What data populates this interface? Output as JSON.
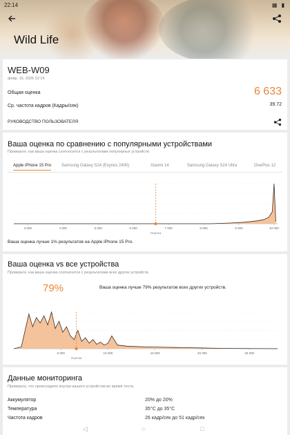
{
  "status_bar": {
    "time": "22:14",
    "icons": "▦ ▮"
  },
  "header": {
    "title": "Wild Life",
    "back_icon": "arrow-left-icon",
    "share_icon": "share-icon"
  },
  "result": {
    "device": "WEB-W09",
    "date": "февр. 15, 2025 22:14",
    "overall_label": "Общая оценка",
    "overall_value": "6 633",
    "fps_label": "Ср. частота кадров (Кадры/сек)",
    "fps_value": "39.72",
    "guide_label": "РУКОВОДСТВО ПОЛЬЗОВАТЕЛЯ"
  },
  "compare_popular": {
    "title": "Ваша оценка по сравнению с популярными устройствами",
    "subtitle": "Проверьте, как ваша оценка соотносится с результатами популярных устройств.",
    "tabs": [
      "Apple iPhone 15 Pro",
      "Samsung Galaxy S24 (Exynos 2400)",
      "Xiaomi 14",
      "Samsung Galaxy S24 Ultra",
      "OnePlus 12"
    ],
    "active_tab": 0,
    "note": "Ваша оценка лучше 1% результатов на Apple iPhone 15 Pro."
  },
  "compare_all": {
    "title": "Ваша оценка vs все устройства",
    "subtitle": "Проверьте, как ваша оценка соотносится с результатами всех других устройств.",
    "percent": "79%",
    "text": "Ваша оценка лучше 79% результатов всех других устройств."
  },
  "monitoring": {
    "title": "Данные мониторинга",
    "subtitle": "Проверьте, что происходило внутри вашего устройства во время теста.",
    "rows": [
      {
        "label": "Аккумулятор",
        "value": "20% до 20%"
      },
      {
        "label": "Температура",
        "value": "35°C до 35°C"
      },
      {
        "label": "Частота кадров",
        "value": "26 кадр/сек до 51 кадр/сек"
      }
    ]
  },
  "chart_data": [
    {
      "type": "area",
      "title": "Ваша оценка по сравнению с популярными устройствами",
      "xlabel": "Оценка",
      "x_ticks": [
        "3 000",
        "4 000",
        "5 000",
        "6 000",
        "7 000",
        "8 000",
        "9 000",
        "10 000"
      ],
      "xlim": [
        2600,
        10100
      ],
      "marker_x": 6633,
      "series": [
        {
          "x": [
            2600,
            8200,
            8800,
            9200,
            9500,
            9700,
            9850,
            9950,
            10000,
            10050
          ],
          "y": [
            0,
            0,
            0.02,
            0.04,
            0.07,
            0.1,
            0.16,
            0.3,
            1.0,
            0.05
          ]
        }
      ]
    },
    {
      "type": "area",
      "title": "Ваша оценка vs все устройства",
      "xlabel": "Оценка",
      "x_ticks": [
        "5 000",
        "10 000",
        "15 000",
        "20 000",
        "25 000"
      ],
      "xlim": [
        0,
        28000
      ],
      "marker_x": 6633,
      "series": [
        {
          "x": [
            0,
            800,
            1200,
            1600,
            2000,
            2400,
            2800,
            3200,
            3600,
            4000,
            4400,
            4800,
            5200,
            5600,
            6000,
            6400,
            6800,
            7200,
            7600,
            8000,
            8400,
            8800,
            9200,
            9600,
            10000,
            10400,
            11000,
            12000,
            14000,
            16000,
            18000,
            20000,
            22000,
            25000,
            28000
          ],
          "y": [
            0,
            0.05,
            0.5,
            0.95,
            0.6,
            0.85,
            0.7,
            0.9,
            0.65,
            1.0,
            0.55,
            0.75,
            0.45,
            0.6,
            0.35,
            0.25,
            0.5,
            0.2,
            0.3,
            0.15,
            0.25,
            0.12,
            0.18,
            0.1,
            0.15,
            0.35,
            0.1,
            0.07,
            0.05,
            0.04,
            0.03,
            0.02,
            0.01,
            0.005,
            0
          ]
        }
      ]
    }
  ],
  "colors": {
    "accent": "#e8863a",
    "fill": "#f3b98a",
    "line": "#3a2a22"
  },
  "navbar": {
    "back": "◁",
    "home": "○",
    "recent": "□"
  }
}
